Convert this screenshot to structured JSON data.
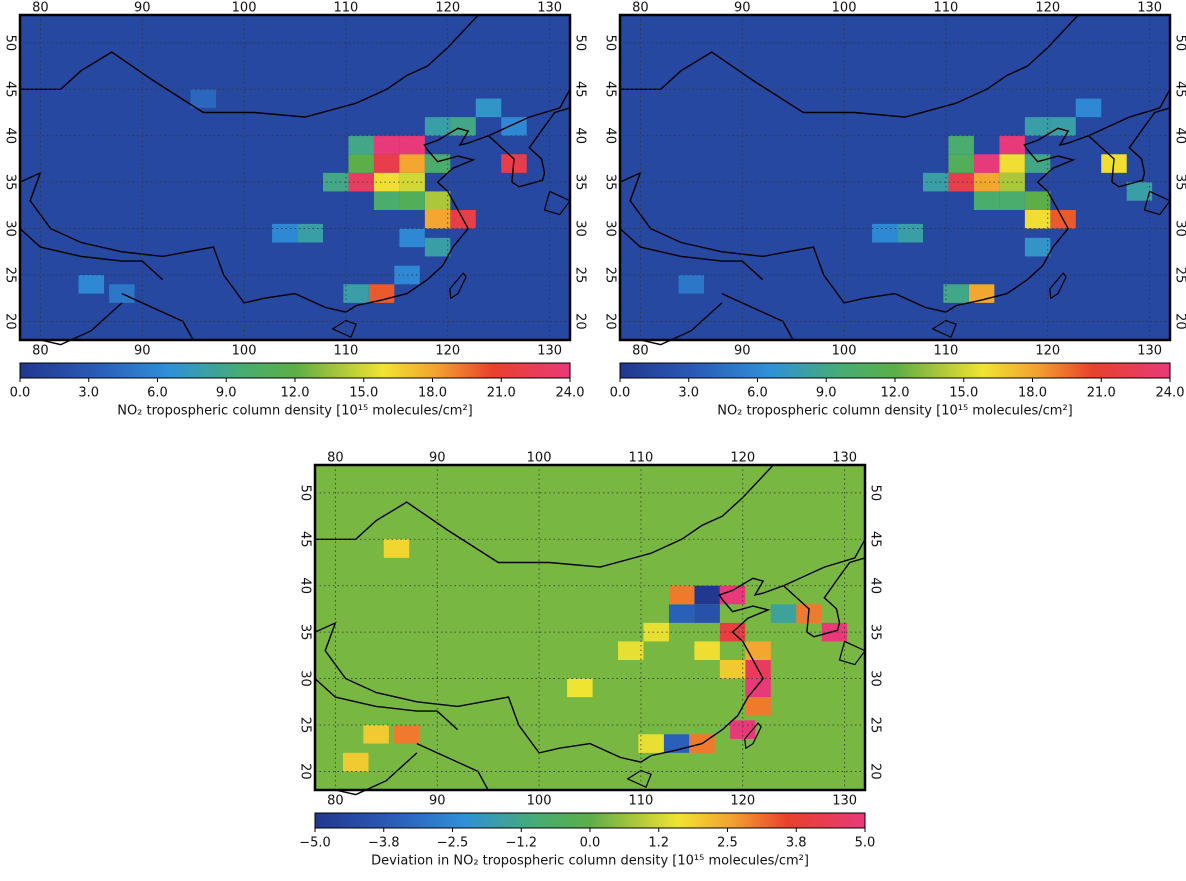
{
  "maps": [
    {
      "lon_ticks": [
        80,
        90,
        100,
        110,
        120,
        130
      ],
      "lat_ticks": [
        20,
        25,
        30,
        35,
        40,
        45,
        50
      ],
      "colorbar": {
        "lim": [
          0,
          24
        ],
        "ticks": [
          {
            "value": 0,
            "label": "0.0"
          },
          {
            "value": 3,
            "label": "3.0"
          },
          {
            "value": 6,
            "label": "6.0"
          },
          {
            "value": 9,
            "label": "9.0"
          },
          {
            "value": 12,
            "label": "12.0"
          },
          {
            "value": 15,
            "label": "15.0"
          },
          {
            "value": 18,
            "label": "18.0"
          },
          {
            "value": 21,
            "label": "21.0"
          },
          {
            "value": 24,
            "label": "24.0"
          }
        ],
        "title": "NO₂ tropospheric column density [10¹⁵ molecules/cm²]"
      },
      "background": 1.5,
      "cells": [
        {
          "lon": 114,
          "lat": 39,
          "value": 24
        },
        {
          "lon": 116.5,
          "lat": 39,
          "value": 24
        },
        {
          "lon": 114,
          "lat": 37,
          "value": 22
        },
        {
          "lon": 111.5,
          "lat": 35,
          "value": 23
        },
        {
          "lon": 116.5,
          "lat": 37,
          "value": 18
        },
        {
          "lon": 114,
          "lat": 35,
          "value": 16
        },
        {
          "lon": 116.5,
          "lat": 35,
          "value": 15
        },
        {
          "lon": 119,
          "lat": 33,
          "value": 14
        },
        {
          "lon": 121.5,
          "lat": 31,
          "value": 22
        },
        {
          "lon": 119,
          "lat": 31,
          "value": 18
        },
        {
          "lon": 119,
          "lat": 37,
          "value": 10
        },
        {
          "lon": 111.5,
          "lat": 37,
          "value": 12
        },
        {
          "lon": 109,
          "lat": 35,
          "value": 9
        },
        {
          "lon": 111.5,
          "lat": 39,
          "value": 9
        },
        {
          "lon": 114,
          "lat": 33,
          "value": 10
        },
        {
          "lon": 116.5,
          "lat": 33,
          "value": 11
        },
        {
          "lon": 119,
          "lat": 41,
          "value": 8
        },
        {
          "lon": 121.5,
          "lat": 41,
          "value": 9
        },
        {
          "lon": 124,
          "lat": 43,
          "value": 7
        },
        {
          "lon": 126.5,
          "lat": 37,
          "value": 22
        },
        {
          "lon": 113.5,
          "lat": 23,
          "value": 20
        },
        {
          "lon": 111,
          "lat": 23,
          "value": 8
        },
        {
          "lon": 116,
          "lat": 25,
          "value": 6
        },
        {
          "lon": 106.5,
          "lat": 29.5,
          "value": 8
        },
        {
          "lon": 104,
          "lat": 29.5,
          "value": 6
        },
        {
          "lon": 119,
          "lat": 28,
          "value": 8
        },
        {
          "lon": 116.5,
          "lat": 29,
          "value": 6
        },
        {
          "lon": 85,
          "lat": 24,
          "value": 6
        },
        {
          "lon": 88,
          "lat": 23,
          "value": 5
        },
        {
          "lon": 96,
          "lat": 44,
          "value": 4
        },
        {
          "lon": 126.5,
          "lat": 41,
          "value": 6
        }
      ]
    },
    {
      "lon_ticks": [
        80,
        90,
        100,
        110,
        120,
        130
      ],
      "lat_ticks": [
        20,
        25,
        30,
        35,
        40,
        45,
        50
      ],
      "colorbar": {
        "lim": [
          0,
          24
        ],
        "ticks": [
          {
            "value": 0,
            "label": "0.0"
          },
          {
            "value": 3,
            "label": "3.0"
          },
          {
            "value": 6,
            "label": "6.0"
          },
          {
            "value": 9,
            "label": "9.0"
          },
          {
            "value": 12,
            "label": "12.0"
          },
          {
            "value": 15,
            "label": "15.0"
          },
          {
            "value": 18,
            "label": "18.0"
          },
          {
            "value": 21,
            "label": "21.0"
          },
          {
            "value": 24,
            "label": "24.0"
          }
        ],
        "title": "NO₂ tropospheric column density [10¹⁵ molecules/cm²]"
      },
      "background": 1.5,
      "cells": [
        {
          "lon": 116.5,
          "lat": 39,
          "value": 24
        },
        {
          "lon": 114,
          "lat": 37,
          "value": 24
        },
        {
          "lon": 111.5,
          "lat": 35,
          "value": 22
        },
        {
          "lon": 114,
          "lat": 35,
          "value": 18
        },
        {
          "lon": 116.5,
          "lat": 37,
          "value": 16
        },
        {
          "lon": 116.5,
          "lat": 35,
          "value": 14
        },
        {
          "lon": 119,
          "lat": 33,
          "value": 12
        },
        {
          "lon": 121.5,
          "lat": 31,
          "value": 20
        },
        {
          "lon": 119,
          "lat": 31,
          "value": 16
        },
        {
          "lon": 119,
          "lat": 37,
          "value": 9
        },
        {
          "lon": 111.5,
          "lat": 37,
          "value": 11
        },
        {
          "lon": 109,
          "lat": 35,
          "value": 8
        },
        {
          "lon": 111.5,
          "lat": 39,
          "value": 10
        },
        {
          "lon": 114,
          "lat": 33,
          "value": 10
        },
        {
          "lon": 116.5,
          "lat": 33,
          "value": 10
        },
        {
          "lon": 119,
          "lat": 41,
          "value": 8
        },
        {
          "lon": 121.5,
          "lat": 41,
          "value": 8
        },
        {
          "lon": 124,
          "lat": 43,
          "value": 6
        },
        {
          "lon": 126.5,
          "lat": 37,
          "value": 16
        },
        {
          "lon": 113.5,
          "lat": 23,
          "value": 18
        },
        {
          "lon": 111,
          "lat": 23,
          "value": 9
        },
        {
          "lon": 106.5,
          "lat": 29.5,
          "value": 8
        },
        {
          "lon": 104,
          "lat": 29.5,
          "value": 6
        },
        {
          "lon": 119,
          "lat": 28,
          "value": 7
        },
        {
          "lon": 85,
          "lat": 24,
          "value": 5
        },
        {
          "lon": 129,
          "lat": 34,
          "value": 8
        }
      ]
    },
    {
      "lon_ticks": [
        80,
        90,
        100,
        110,
        120,
        130
      ],
      "lat_ticks": [
        20,
        25,
        30,
        35,
        40,
        45,
        50
      ],
      "colorbar": {
        "lim": [
          -5,
          5
        ],
        "ticks": [
          {
            "value": -5,
            "label": "−5.0"
          },
          {
            "value": -3.75,
            "label": "−3.8"
          },
          {
            "value": -2.5,
            "label": "−2.5"
          },
          {
            "value": -1.25,
            "label": "−1.2"
          },
          {
            "value": 0,
            "label": "0.0"
          },
          {
            "value": 1.25,
            "label": "1.2"
          },
          {
            "value": 2.5,
            "label": "2.5"
          },
          {
            "value": 3.75,
            "label": "3.8"
          },
          {
            "value": 5,
            "label": "5.0"
          }
        ],
        "title": "Deviation in NO₂ tropospheric column density [10¹⁵ molecules/cm²]"
      },
      "background": 0.3,
      "cells": [
        {
          "lon": 116.5,
          "lat": 39,
          "value": -5
        },
        {
          "lon": 114,
          "lat": 37,
          "value": -3.5
        },
        {
          "lon": 116.5,
          "lat": 37,
          "value": -4
        },
        {
          "lon": 119,
          "lat": 39,
          "value": 5
        },
        {
          "lon": 114,
          "lat": 39,
          "value": 3
        },
        {
          "lon": 119,
          "lat": 35,
          "value": 4
        },
        {
          "lon": 121.5,
          "lat": 33,
          "value": 2.5
        },
        {
          "lon": 121.5,
          "lat": 31,
          "value": 4.5
        },
        {
          "lon": 121.5,
          "lat": 29,
          "value": 5
        },
        {
          "lon": 121.5,
          "lat": 27,
          "value": 3
        },
        {
          "lon": 120,
          "lat": 24.5,
          "value": 5
        },
        {
          "lon": 113.5,
          "lat": 23,
          "value": -3.5
        },
        {
          "lon": 116,
          "lat": 23,
          "value": 3
        },
        {
          "lon": 126.5,
          "lat": 37,
          "value": 3
        },
        {
          "lon": 129,
          "lat": 35,
          "value": 5
        },
        {
          "lon": 124,
          "lat": 37,
          "value": -1.5
        },
        {
          "lon": 84,
          "lat": 24,
          "value": 2
        },
        {
          "lon": 87,
          "lat": 24,
          "value": 3
        },
        {
          "lon": 82,
          "lat": 21,
          "value": 2
        },
        {
          "lon": 86,
          "lat": 44,
          "value": 1.8
        },
        {
          "lon": 109,
          "lat": 33,
          "value": 1.5
        },
        {
          "lon": 104,
          "lat": 29,
          "value": 1.6
        },
        {
          "lon": 111.5,
          "lat": 35,
          "value": 1.5
        },
        {
          "lon": 119,
          "lat": 31,
          "value": 2
        },
        {
          "lon": 116.5,
          "lat": 33,
          "value": 1.7
        },
        {
          "lon": 111,
          "lat": 23,
          "value": 1.5
        }
      ]
    }
  ]
}
